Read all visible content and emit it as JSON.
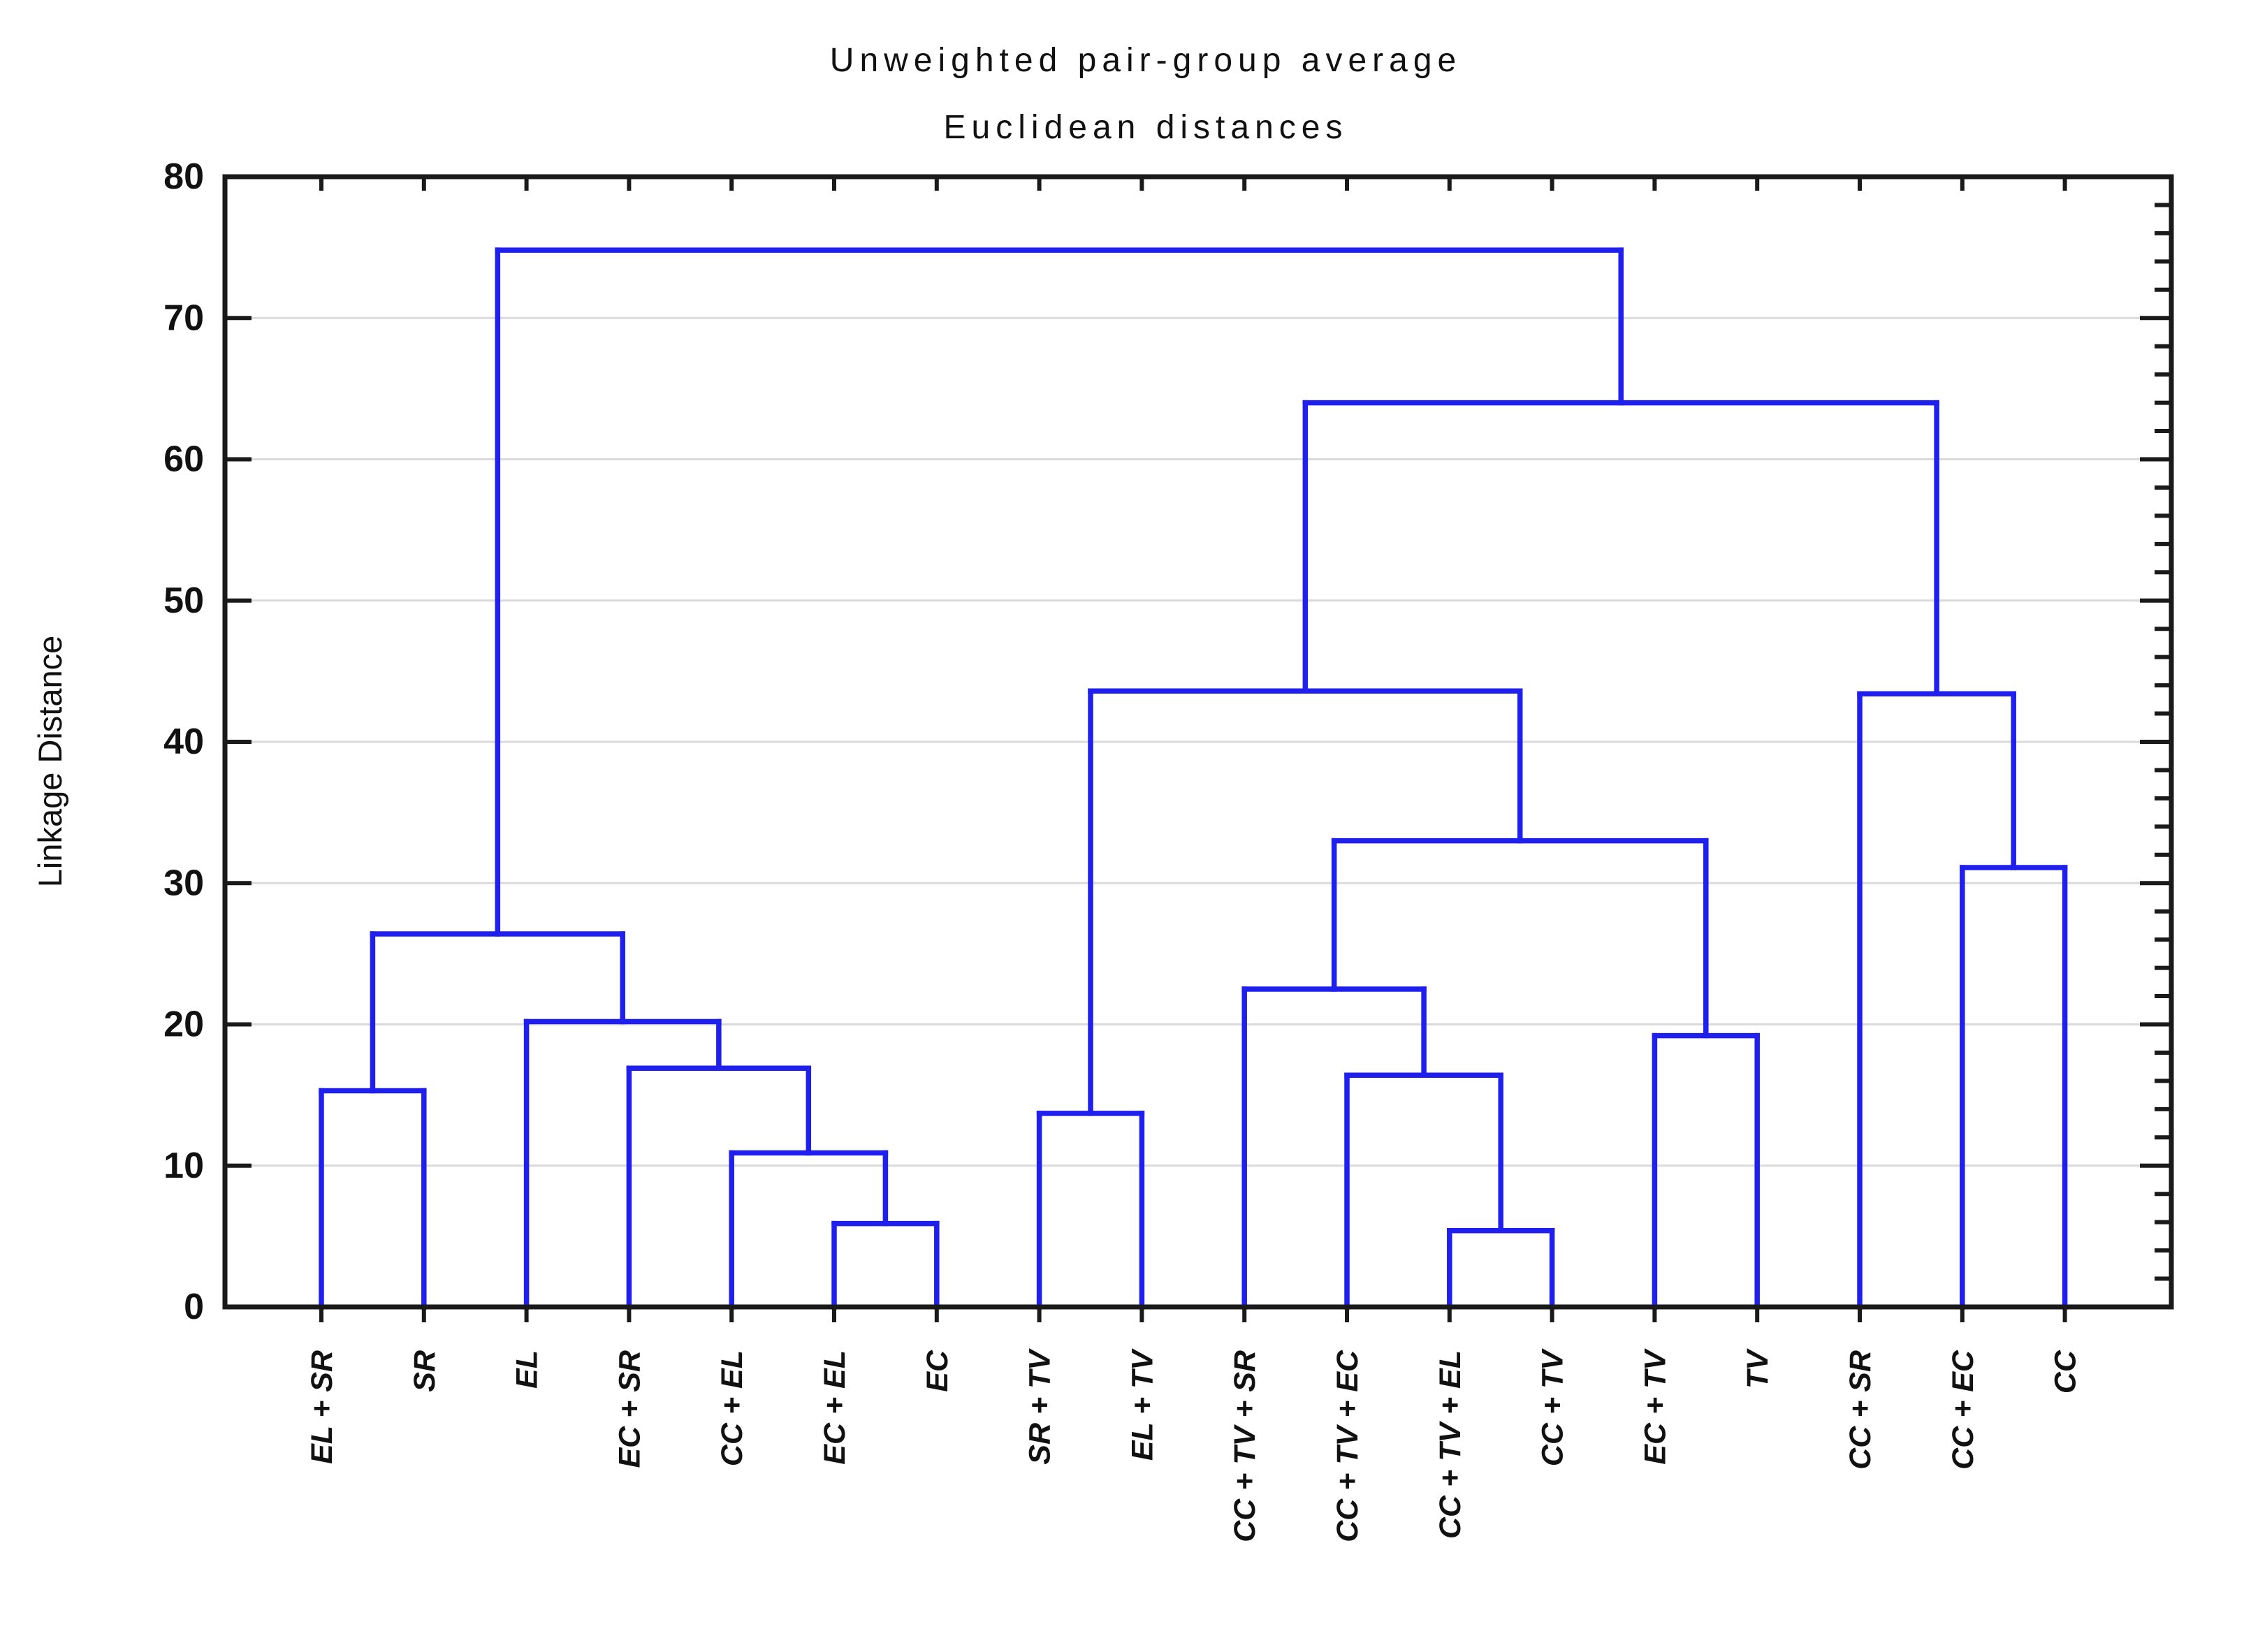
{
  "chart_data": {
    "type": "dendrogram",
    "title": "Unweighted pair-group average",
    "subtitle": "Euclidean distances",
    "ylabel": "Linkage Distance",
    "ylim": [
      0,
      80
    ],
    "yticks": [
      0,
      10,
      20,
      30,
      40,
      50,
      60,
      70,
      80
    ],
    "grid": "horizontal-major",
    "legend": "none",
    "leaves": [
      "EL + SR",
      "SR",
      "EL",
      "EC + SR",
      "CC + EL",
      "EC + EL",
      "EC",
      "SR + TV",
      "EL + TV",
      "CC + TV + SR",
      "CC + TV + EC",
      "CC + TV + EL",
      "CC + TV",
      "EC + TV",
      "TV",
      "CC + SR",
      "CC + EC",
      "CC"
    ],
    "merges": [
      {
        "id": "M0",
        "a": "L0",
        "b": "L1",
        "height": 15.3
      },
      {
        "id": "M1",
        "a": "L5",
        "b": "L6",
        "height": 5.9
      },
      {
        "id": "M2",
        "a": "L4",
        "b": "M1",
        "height": 10.9
      },
      {
        "id": "M3",
        "a": "L3",
        "b": "M2",
        "height": 16.9
      },
      {
        "id": "M4",
        "a": "L2",
        "b": "M3",
        "height": 20.2
      },
      {
        "id": "M5",
        "a": "M0",
        "b": "M4",
        "height": 26.4
      },
      {
        "id": "M6",
        "a": "L7",
        "b": "L8",
        "height": 13.7
      },
      {
        "id": "M7",
        "a": "L11",
        "b": "L12",
        "height": 5.4
      },
      {
        "id": "M8",
        "a": "L10",
        "b": "M7",
        "height": 16.4
      },
      {
        "id": "M9",
        "a": "L9",
        "b": "M8",
        "height": 22.5
      },
      {
        "id": "M10",
        "a": "L13",
        "b": "L14",
        "height": 19.2
      },
      {
        "id": "M11",
        "a": "M9",
        "b": "M10",
        "height": 33.0
      },
      {
        "id": "M12",
        "a": "M6",
        "b": "M11",
        "height": 43.6
      },
      {
        "id": "M13",
        "a": "L16",
        "b": "L17",
        "height": 31.1
      },
      {
        "id": "M14",
        "a": "L15",
        "b": "M13",
        "height": 43.4
      },
      {
        "id": "M15",
        "a": "M12",
        "b": "M14",
        "height": 64.0
      },
      {
        "id": "M16",
        "a": "M5",
        "b": "M15",
        "height": 74.8
      }
    ],
    "colors": {
      "figure_background": "#FBF4E2",
      "plot_background": "#FFFFFF",
      "link_line": "#2020EE",
      "gridline": "#DADADA",
      "frame": "#1A1A1A",
      "text": "#111111"
    }
  }
}
